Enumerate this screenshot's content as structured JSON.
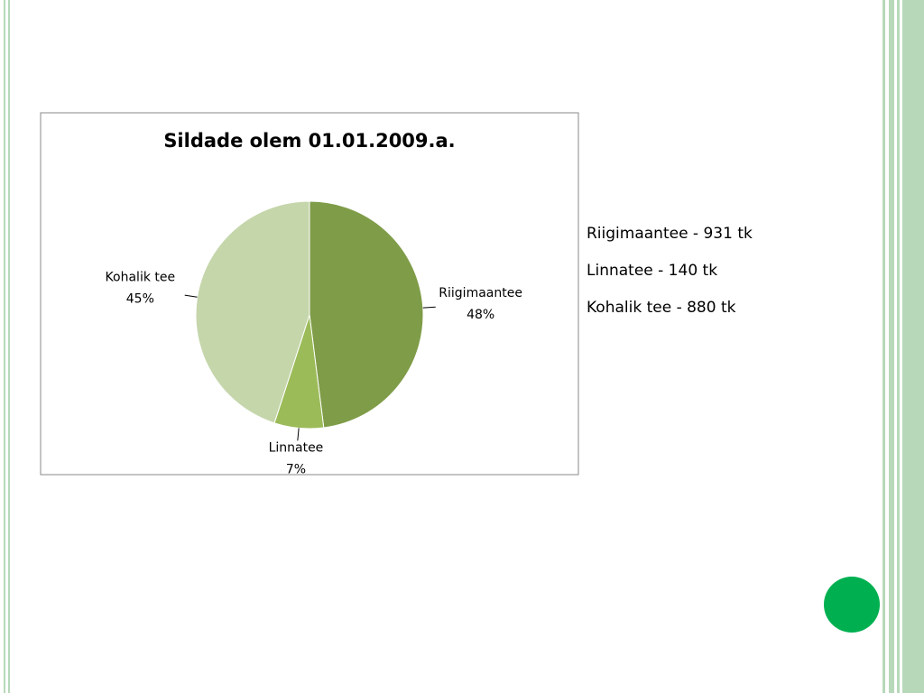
{
  "chart_data": {
    "type": "pie",
    "title": "Sildade olem 01.01.2009.a.",
    "categories": [
      "Riigimaantee",
      "Linnatee",
      "Kohalik tee"
    ],
    "values": [
      48,
      7,
      45
    ],
    "value_labels": [
      "48%",
      "7%",
      "45%"
    ],
    "colors": [
      "#7f9c48",
      "#9bbb59",
      "#c5d6ab"
    ]
  },
  "side_text": [
    "Riigimaantee - 931 tk",
    "Linnatee - 140 tk",
    "Kohalik tee - 880 tk"
  ]
}
